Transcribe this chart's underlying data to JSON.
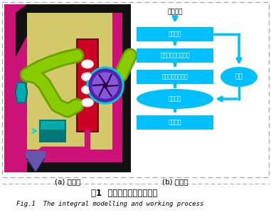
{
  "title_cn": "图1  整体建模与工作流程图",
  "title_en": "Fig.1  The integral modelling and working process",
  "label_a": "(a) 建模图",
  "label_b": "(b) 流程图",
  "flow_title": "油烟废气",
  "flow_nodes": [
    "初次过滤",
    "空气倍增油烟抽吸器",
    "油烟冷凝吸附回收",
    "电离净化",
    "洁净空气"
  ],
  "flow_side": "油杯",
  "box_color": "#00BFFF",
  "bg_color": "#FFFFFF",
  "dashed_border_color": "#AAAAAA",
  "left_bg_yellow": "#D4C96A",
  "outer_dark": "#111111",
  "pink_bg": "#CC1177",
  "red_inner": "#CC0022",
  "green_tube": "#88CC00",
  "green_tube_dark": "#6AA000",
  "teal_box": "#007777",
  "teal_light": "#00AAAA",
  "purple_sphere": "#5522AA",
  "purple_sphere_light": "#8855DD",
  "funnel_color": "#6655AA",
  "cyan_ring": "#00CCDD"
}
